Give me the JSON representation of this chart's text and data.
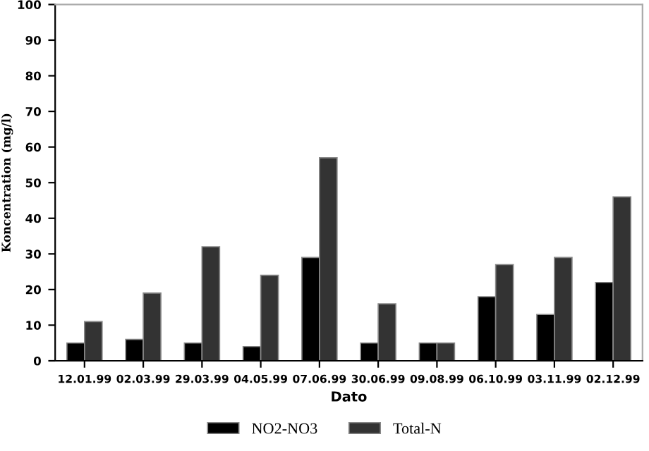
{
  "chart_data": {
    "type": "bar",
    "xlabel": "Dato",
    "ylabel": "Koncentration (mg/l)",
    "categories": [
      "12.01.99",
      "02.03.99",
      "29.03.99",
      "04.05.99",
      "07.06.99",
      "30.06.99",
      "09.08.99",
      "06.10.99",
      "03.11.99",
      "02.12.99"
    ],
    "series": [
      {
        "name": "NO2-NO3",
        "color": "#000000",
        "values": [
          5,
          6,
          5,
          4,
          29,
          5,
          5,
          18,
          13,
          22
        ]
      },
      {
        "name": "Total-N",
        "color": "#333333",
        "values": [
          11,
          19,
          32,
          24,
          57,
          16,
          5,
          27,
          29,
          46
        ]
      }
    ],
    "ylim": [
      0,
      100
    ],
    "yticks": [
      0,
      10,
      20,
      30,
      40,
      50,
      60,
      70,
      80,
      90,
      100
    ],
    "grid": false,
    "legend": "bottom"
  }
}
